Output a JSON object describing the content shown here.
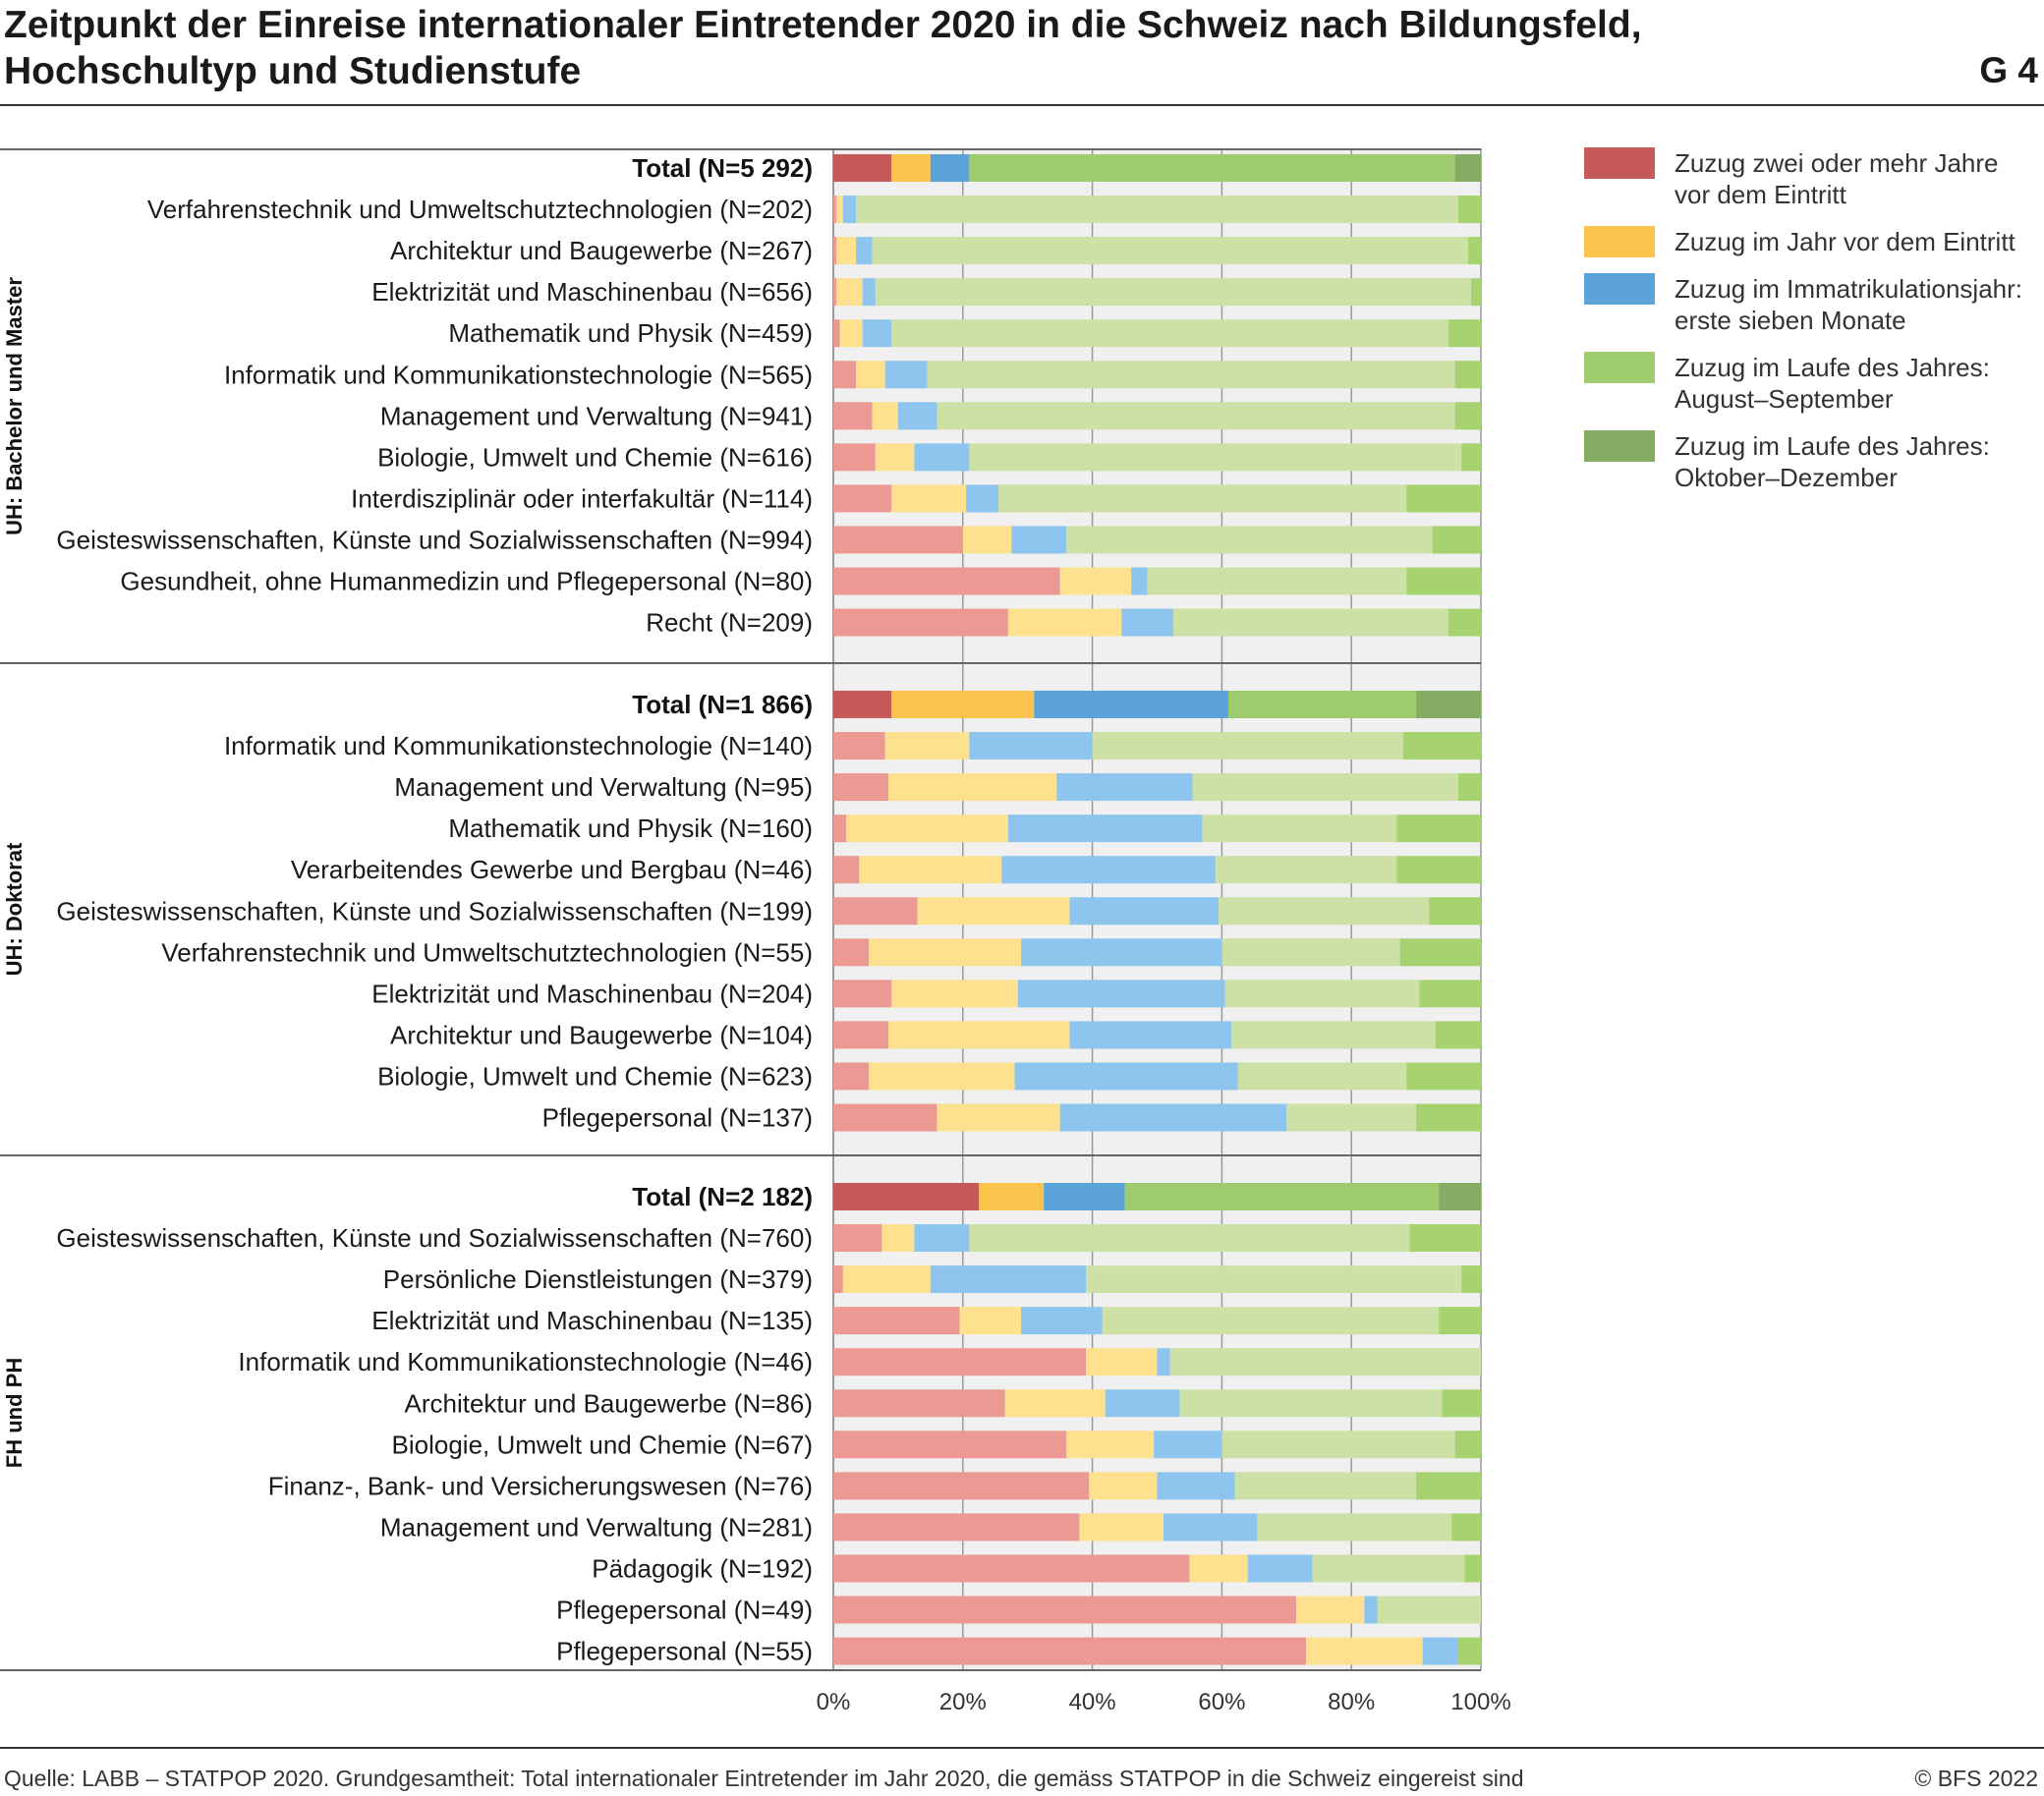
{
  "title": {
    "line1": "Zeitpunkt der Einreise internationaler Eintretender 2020 in die Schweiz nach Bildungsfeld,",
    "line2": "Hochschultyp und Studienstufe",
    "number": "G 4"
  },
  "source": "Quelle: LABB – STATPOP 2020. Grundgesamtheit: Total internationaler Eintretender im Jahr 2020, die gemäss STATPOP in die Schweiz eingereist sind",
  "copyright": "© BFS 2022",
  "colors": {
    "total": [
      "#c65a5b",
      "#fcc44d",
      "#5ca3d9",
      "#9ecb6d",
      "#85ac63"
    ],
    "row": [
      "#ec9993",
      "#fde18f",
      "#8ec5ee",
      "#cde0a5",
      "#a6d36f"
    ],
    "background": "#eff0ef",
    "grid": "#999999"
  },
  "legend": [
    "Zuzug zwei oder mehr Jahre vor dem Eintritt",
    "Zuzug im Jahr vor dem Eintritt",
    "Zuzug im Immatrikulationsjahr: erste sieben Monate",
    "Zuzug im Laufe des Jahres: August–September",
    "Zuzug im Laufe des Jahres: Oktober–Dezember"
  ],
  "chart_data": {
    "type": "bar",
    "orientation": "horizontal",
    "stacked": true,
    "normalized": true,
    "xlim": [
      0,
      100
    ],
    "xticks": [
      "0%",
      "20%",
      "40%",
      "60%",
      "80%",
      "100%"
    ],
    "series": [
      "Zuzug zwei oder mehr Jahre vor dem Eintritt",
      "Zuzug im Jahr vor dem Eintritt",
      "Zuzug im Immatrikulationsjahr: erste sieben Monate",
      "Zuzug im Laufe des Jahres: August–September",
      "Zuzug im Laufe des Jahres: Oktober–Dezember"
    ],
    "groups": [
      {
        "name": "UH: Bachelor und Master",
        "rows": [
          {
            "label": "Total (N=5 292)",
            "total": true,
            "values": [
              9,
              6,
              6,
              75,
              4
            ]
          },
          {
            "label": "Verfahrenstechnik und Umweltschutztechnologien (N=202)",
            "values": [
              0.5,
              1,
              2,
              93,
              3.5
            ]
          },
          {
            "label": "Architektur und Baugewerbe (N=267)",
            "values": [
              0.5,
              3,
              2.5,
              92,
              2
            ]
          },
          {
            "label": "Elektrizität und Maschinenbau (N=656)",
            "values": [
              0.5,
              4,
              2,
              92,
              1.5
            ]
          },
          {
            "label": "Mathematik und Physik (N=459)",
            "values": [
              1,
              3.5,
              4.5,
              86,
              5
            ]
          },
          {
            "label": "Informatik und Kommunikationstechnologie (N=565)",
            "values": [
              3.5,
              4.5,
              6.5,
              81.5,
              4
            ]
          },
          {
            "label": "Management und Verwaltung (N=941)",
            "values": [
              6,
              4,
              6,
              80,
              4
            ]
          },
          {
            "label": "Biologie, Umwelt und Chemie (N=616)",
            "values": [
              6.5,
              6,
              8.5,
              76,
              3
            ]
          },
          {
            "label": "Interdisziplinär oder interfakultär (N=114)",
            "values": [
              9,
              11.5,
              5,
              63,
              11.5
            ]
          },
          {
            "label": "Geisteswissenschaften, Künste und Sozialwissenschaften (N=994)",
            "values": [
              20,
              7.5,
              8.5,
              56.5,
              7.5
            ]
          },
          {
            "label": "Gesundheit, ohne Humanmedizin und Pflegepersonal (N=80)",
            "values": [
              35,
              11,
              2.5,
              40,
              11.5
            ]
          },
          {
            "label": "Recht (N=209)",
            "values": [
              27,
              17.5,
              8,
              42.5,
              5
            ]
          }
        ]
      },
      {
        "name": "UH: Doktorat",
        "rows": [
          {
            "label": "Total (N=1 866)",
            "total": true,
            "values": [
              9,
              22,
              30,
              29,
              10
            ]
          },
          {
            "label": "Informatik und Kommunikationstechnologie (N=140)",
            "values": [
              8,
              13,
              19,
              48,
              12
            ]
          },
          {
            "label": "Management und Verwaltung (N=95)",
            "values": [
              8.5,
              26,
              21,
              41,
              3.5
            ]
          },
          {
            "label": "Mathematik und Physik (N=160)",
            "values": [
              2,
              25,
              30,
              30,
              13
            ]
          },
          {
            "label": "Verarbeitendes Gewerbe und Bergbau (N=46)",
            "values": [
              4,
              22,
              33,
              28,
              13
            ]
          },
          {
            "label": "Geisteswissenschaften, Künste und Sozialwissenschaften (N=199)",
            "values": [
              13,
              23.5,
              23,
              32.5,
              8
            ]
          },
          {
            "label": "Verfahrenstechnik und Umweltschutztechnologien (N=55)",
            "values": [
              5.5,
              23.5,
              31,
              27.5,
              12.5
            ]
          },
          {
            "label": "Elektrizität und Maschinenbau (N=204)",
            "values": [
              9,
              19.5,
              32,
              30,
              9.5
            ]
          },
          {
            "label": "Architektur und Baugewerbe (N=104)",
            "values": [
              8.5,
              28,
              25,
              31.5,
              7
            ]
          },
          {
            "label": "Biologie, Umwelt und Chemie (N=623)",
            "values": [
              5.5,
              22.5,
              34.5,
              26,
              11.5
            ]
          },
          {
            "label": "Pflegepersonal (N=137)",
            "values": [
              16,
              19,
              35,
              20,
              10
            ]
          }
        ]
      },
      {
        "name": "FH und PH",
        "rows": [
          {
            "label": "Total (N=2 182)",
            "total": true,
            "values": [
              22.5,
              10,
              12.5,
              48.5,
              6.5
            ]
          },
          {
            "label": "Geisteswissenschaften, Künste und Sozialwissenschaften (N=760)",
            "values": [
              7.5,
              5,
              8.5,
              68,
              11
            ]
          },
          {
            "label": "Persönliche Dienstleistungen (N=379)",
            "values": [
              1.5,
              13.5,
              24,
              58,
              3
            ]
          },
          {
            "label": "Elektrizität und Maschinenbau (N=135)",
            "values": [
              19.5,
              9.5,
              12.5,
              52,
              6.5
            ]
          },
          {
            "label": "Informatik und Kommunikationstechnologie (N=46)",
            "values": [
              39,
              11,
              2,
              48,
              0
            ]
          },
          {
            "label": "Architektur und Baugewerbe (N=86)",
            "values": [
              26.5,
              15.5,
              11.5,
              40.5,
              6
            ]
          },
          {
            "label": "Biologie, Umwelt und Chemie (N=67)",
            "values": [
              36,
              13.5,
              10.5,
              36,
              4
            ]
          },
          {
            "label": "Finanz-, Bank- und Versicherungswesen (N=76)",
            "values": [
              39.5,
              10.5,
              12,
              28,
              10
            ]
          },
          {
            "label": "Management und Verwaltung (N=281)",
            "values": [
              38,
              13,
              14.5,
              30,
              4.5
            ]
          },
          {
            "label": "Pädagogik (N=192)",
            "values": [
              55,
              9,
              10,
              23.5,
              2.5
            ]
          },
          {
            "label": "Pflegepersonal (N=49)",
            "values": [
              71.5,
              10.5,
              2,
              16,
              0
            ]
          },
          {
            "label": "Pflegepersonal (N=55)",
            "values": [
              73,
              18,
              5.5,
              0,
              3.5
            ]
          }
        ]
      }
    ]
  }
}
